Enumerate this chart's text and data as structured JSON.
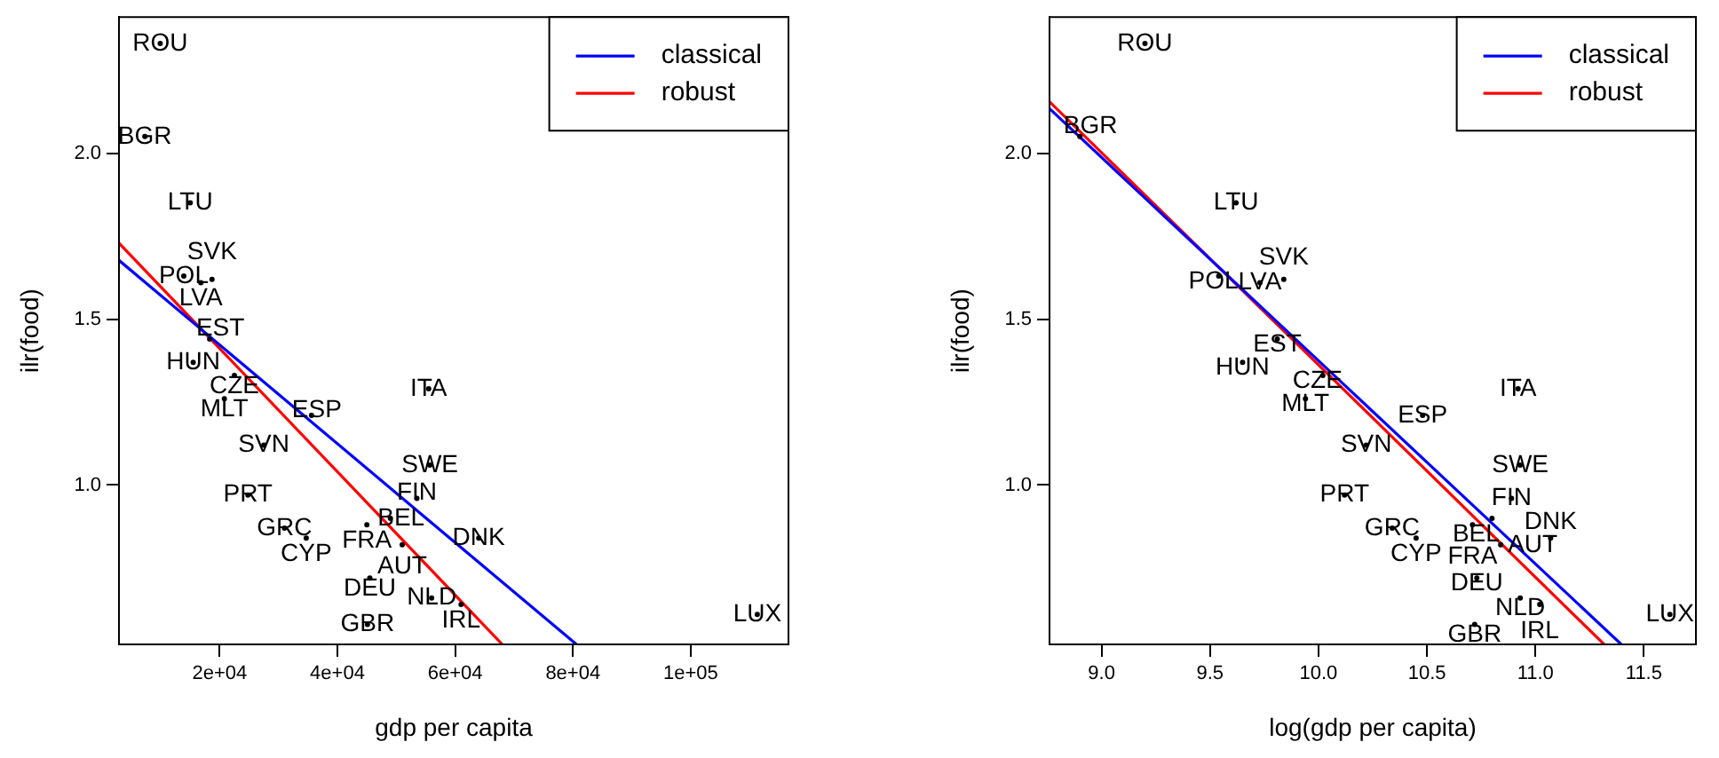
{
  "chart_data": [
    {
      "type": "scatter",
      "xlabel": "gdp per capita",
      "ylabel": "ilr(food)",
      "legend": "top right",
      "xlim": [
        2900,
        116600
      ],
      "ylim": [
        0.52,
        2.41
      ],
      "xticks": [
        {
          "value": 20000,
          "label": "2e+04"
        },
        {
          "value": 40000,
          "label": "4e+04"
        },
        {
          "value": 60000,
          "label": "6e+04"
        },
        {
          "value": 80000,
          "label": "8e+04"
        },
        {
          "value": 100000,
          "label": "1e+05"
        }
      ],
      "yticks": [
        {
          "value": 1,
          "label": "1.0"
        },
        {
          "value": 1.5,
          "label": "1.5"
        },
        {
          "value": 2,
          "label": "2.0"
        }
      ],
      "series": [
        {
          "type": "scatter",
          "color": "#000000",
          "x": [
            9900,
            7300,
            15000,
            13900,
            16800,
            18700,
            18300,
            15500,
            22500,
            20800,
            35600,
            55500,
            27500,
            55700,
            24800,
            53500,
            49000,
            45000,
            31000,
            34700,
            51000,
            64000,
            45500,
            56000,
            61000,
            45100,
            111300
          ],
          "values": [
            2.33,
            2.05,
            1.85,
            1.63,
            1.61,
            1.62,
            1.44,
            1.37,
            1.33,
            1.26,
            1.21,
            1.29,
            1.12,
            1.06,
            0.97,
            0.96,
            0.9,
            0.88,
            0.87,
            0.84,
            0.82,
            0.84,
            0.72,
            0.66,
            0.64,
            0.58,
            0.61
          ],
          "value_labels": [
            "ROU",
            "BGR",
            "LTU",
            "POL",
            "LVA",
            "SVK",
            "EST",
            "HUN",
            "CZE",
            "MLT",
            "ESP",
            "ITA",
            "SVN",
            "SWE",
            "PRT",
            "FIN",
            "BEL",
            "FRA",
            "GRC",
            "CYP",
            "AUT",
            "DNK",
            "DEU",
            "NLD",
            "IRL",
            "GBR",
            "LUX"
          ]
        },
        {
          "type": "line",
          "name": "classical",
          "color": "#0000ff",
          "x": [
            2900,
            80600
          ],
          "values": [
            1.677,
            0.52
          ]
        },
        {
          "type": "line",
          "name": "robust",
          "color": "#ff0000",
          "x": [
            2900,
            68000
          ],
          "values": [
            1.729,
            0.52
          ]
        }
      ]
    },
    {
      "type": "scatter",
      "xlabel": "log(gdp per capita)",
      "ylabel": "ilr(food)",
      "legend": "top right",
      "xlim": [
        8.76,
        11.74
      ],
      "ylim": [
        0.52,
        2.41
      ],
      "xticks": [
        {
          "value": 9,
          "label": "9.0"
        },
        {
          "value": 9.5,
          "label": "9.5"
        },
        {
          "value": 10,
          "label": "10.0"
        },
        {
          "value": 10.5,
          "label": "10.5"
        },
        {
          "value": 11,
          "label": "11.0"
        },
        {
          "value": 11.5,
          "label": "11.5"
        }
      ],
      "yticks": [
        {
          "value": 1,
          "label": "1.0"
        },
        {
          "value": 1.5,
          "label": "1.5"
        },
        {
          "value": 2,
          "label": "2.0"
        }
      ],
      "series": [
        {
          "type": "scatter",
          "color": "#000000",
          "x": [
            9.2,
            8.9,
            9.62,
            9.54,
            9.73,
            9.84,
            9.81,
            9.65,
            10.02,
            9.94,
            10.48,
            10.92,
            10.22,
            10.93,
            10.12,
            10.89,
            10.8,
            10.71,
            10.34,
            10.45,
            10.84,
            11.07,
            10.73,
            10.93,
            11.02,
            10.72,
            11.62
          ],
          "values": [
            2.33,
            2.05,
            1.85,
            1.63,
            1.61,
            1.62,
            1.44,
            1.37,
            1.33,
            1.26,
            1.21,
            1.29,
            1.12,
            1.06,
            0.97,
            0.96,
            0.9,
            0.88,
            0.87,
            0.84,
            0.82,
            0.84,
            0.72,
            0.66,
            0.64,
            0.58,
            0.61
          ],
          "value_labels": [
            "ROU",
            "BGR",
            "LTU",
            "POL",
            "LVA",
            "SVK",
            "EST",
            "HUN",
            "CZE",
            "MLT",
            "ESP",
            "ITA",
            "SVN",
            "SWE",
            "PRT",
            "FIN",
            "BEL",
            "FRA",
            "GRC",
            "CYP",
            "AUT",
            "DNK",
            "DEU",
            "NLD",
            "IRL",
            "GBR",
            "LUX"
          ]
        },
        {
          "type": "line",
          "name": "classical",
          "color": "#0000ff",
          "x": [
            8.76,
            11.396
          ],
          "values": [
            2.134,
            0.52
          ]
        },
        {
          "type": "line",
          "name": "robust",
          "color": "#ff0000",
          "x": [
            8.76,
            11.317
          ],
          "values": [
            2.155,
            0.52
          ]
        }
      ]
    }
  ]
}
